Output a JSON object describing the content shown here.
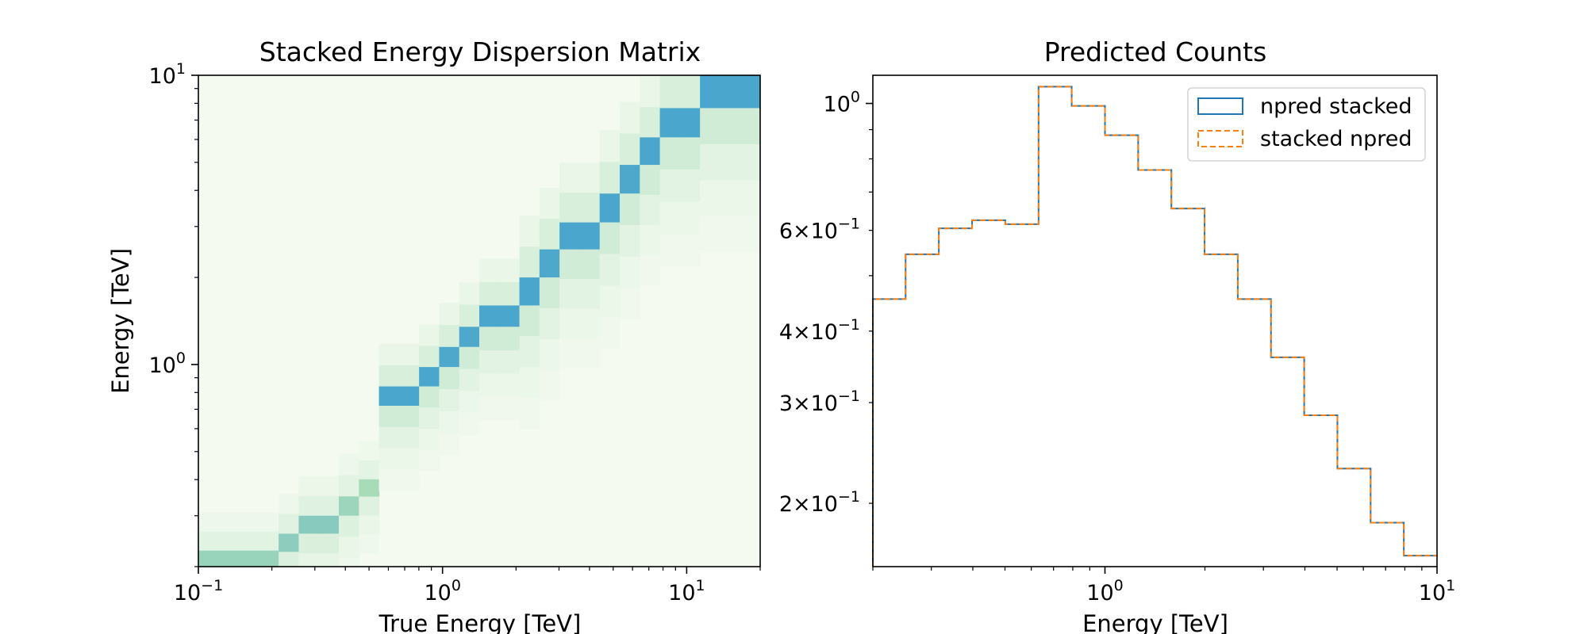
{
  "chart_data": [
    {
      "type": "heatmap",
      "title": "Stacked Energy Dispersion Matrix",
      "xlabel": "True Energy [TeV]",
      "ylabel": "Energy [TeV]",
      "x_scale": "log",
      "y_scale": "log",
      "xlim": [
        0.1,
        20
      ],
      "ylim": [
        0.2,
        10
      ],
      "x_ticks": [
        {
          "base": "10",
          "exp": "−1",
          "value": 0.1
        },
        {
          "base": "10",
          "exp": "0",
          "value": 1
        },
        {
          "base": "10",
          "exp": "1",
          "value": 10
        }
      ],
      "y_ticks": [
        {
          "base": "10",
          "exp": "0",
          "value": 1
        },
        {
          "base": "10",
          "exp": "1",
          "value": 10
        }
      ],
      "colormap": "GnBu",
      "colors": {
        "low": "#f4faf0",
        "mid": "#a8dcb8",
        "high": "#3e9fd0"
      },
      "peak_bins": [
        {
          "e_true": 0.2,
          "e_low": 0.2,
          "e_high": 0.225,
          "peak": 0.62
        },
        {
          "e_true": 0.25,
          "e_low": 0.225,
          "e_high": 0.26,
          "peak": 0.66
        },
        {
          "e_true": 0.31,
          "e_low": 0.26,
          "e_high": 0.3,
          "peak": 0.68
        },
        {
          "e_true": 0.38,
          "e_low": 0.3,
          "e_high": 0.35,
          "peak": 0.6
        },
        {
          "e_true": 0.47,
          "e_low": 0.35,
          "e_high": 0.4,
          "peak": 0.55
        },
        {
          "e_true": 0.55,
          "e_low": 0.4,
          "e_high": 0.45,
          "peak": 0.55
        },
        {
          "e_true": 0.65,
          "e_low": 0.72,
          "e_high": 0.84,
          "peak": 0.95
        },
        {
          "e_true": 0.85,
          "e_low": 0.84,
          "e_high": 0.98,
          "peak": 0.95
        },
        {
          "e_true": 1.05,
          "e_low": 0.98,
          "e_high": 1.15,
          "peak": 0.93
        },
        {
          "e_true": 1.35,
          "e_low": 1.15,
          "e_high": 1.35,
          "peak": 0.93
        },
        {
          "e_true": 1.75,
          "e_low": 1.35,
          "e_high": 1.6,
          "peak": 0.95
        },
        {
          "e_true": 2.2,
          "e_low": 1.6,
          "e_high": 2.0,
          "peak": 0.95
        },
        {
          "e_true": 2.8,
          "e_low": 2.0,
          "e_high": 2.5,
          "peak": 0.93
        },
        {
          "e_true": 3.6,
          "e_low": 2.5,
          "e_high": 3.1,
          "peak": 0.95
        },
        {
          "e_true": 4.5,
          "e_low": 3.1,
          "e_high": 3.9,
          "peak": 0.95
        },
        {
          "e_true": 5.8,
          "e_low": 3.9,
          "e_high": 4.9,
          "peak": 0.93
        },
        {
          "e_true": 7.4,
          "e_low": 4.9,
          "e_high": 6.1,
          "peak": 0.95
        },
        {
          "e_true": 9.5,
          "e_low": 6.1,
          "e_high": 7.7,
          "peak": 0.95
        },
        {
          "e_true": 11.5,
          "e_low": 7.7,
          "e_high": 10.0,
          "peak": 0.95
        }
      ]
    },
    {
      "type": "line",
      "step": true,
      "title": "Predicted Counts",
      "xlabel": "Energy [TeV]",
      "ylabel": "",
      "x_scale": "log",
      "y_scale": "log",
      "xlim": [
        0.2,
        10
      ],
      "ylim": [
        0.155,
        1.12
      ],
      "x_ticks": [
        {
          "base": "10",
          "exp": "0",
          "value": 1
        },
        {
          "base": "10",
          "exp": "1",
          "value": 10
        }
      ],
      "y_ticks": [
        {
          "base": "10",
          "exp": "0",
          "prefix": "",
          "value": 1.0
        },
        {
          "base": "10",
          "exp": "−1",
          "prefix": "6×",
          "value": 0.6
        },
        {
          "base": "10",
          "exp": "−1",
          "prefix": "4×",
          "value": 0.4
        },
        {
          "base": "10",
          "exp": "−1",
          "prefix": "3×",
          "value": 0.3
        },
        {
          "base": "10",
          "exp": "−1",
          "prefix": "2×",
          "value": 0.2
        }
      ],
      "legend_position": "top-right",
      "bin_edges": [
        0.2,
        0.251,
        0.316,
        0.398,
        0.501,
        0.631,
        0.794,
        1.0,
        1.259,
        1.585,
        1.995,
        2.512,
        3.162,
        3.981,
        5.012,
        6.31,
        7.943,
        10.0
      ],
      "series": [
        {
          "name": "npred stacked",
          "color": "#1f77b4",
          "style": "solid",
          "values": [
            0.455,
            0.545,
            0.605,
            0.625,
            0.615,
            1.07,
            0.99,
            0.88,
            0.765,
            0.655,
            0.545,
            0.455,
            0.36,
            0.285,
            0.23,
            0.185,
            0.162
          ]
        },
        {
          "name": "stacked npred",
          "color": "#ff7f0e",
          "style": "dashed",
          "values": [
            0.455,
            0.545,
            0.605,
            0.625,
            0.615,
            1.07,
            0.99,
            0.88,
            0.765,
            0.655,
            0.545,
            0.455,
            0.36,
            0.285,
            0.23,
            0.185,
            0.162
          ]
        }
      ]
    }
  ]
}
